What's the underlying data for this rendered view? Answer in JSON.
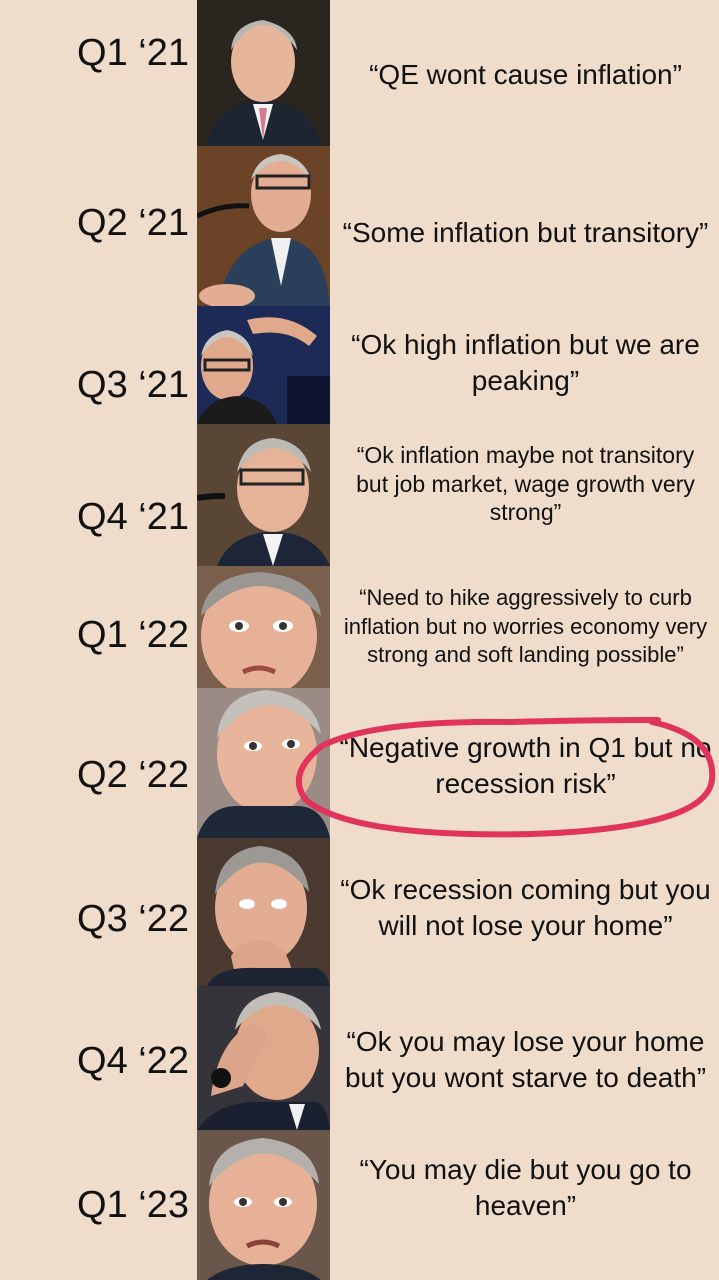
{
  "rows": [
    {
      "quarter": "Q1 ‘21",
      "quote": "“QE wont cause inflation”",
      "photo": "person-portrait-icon"
    },
    {
      "quarter": "Q2 ‘21",
      "quote": "“Some inflation but transitory”",
      "photo": "person-portrait-icon"
    },
    {
      "quarter": "Q3 ‘21",
      "quote": "“Ok high inflation but we are peaking”",
      "photo": "person-portrait-icon"
    },
    {
      "quarter": "Q4 ‘21",
      "quote": "“Ok inflation maybe not transitory but job market, wage growth very strong”",
      "photo": "person-portrait-icon"
    },
    {
      "quarter": "Q1 ‘22",
      "quote": "“Need to hike aggressively to curb inflation but no worries economy very strong and soft landing possible”",
      "photo": "person-portrait-icon"
    },
    {
      "quarter": "Q2 ‘22",
      "quote": "“Negative growth in Q1 but no recession risk”",
      "photo": "person-portrait-icon"
    },
    {
      "quarter": "Q3 ‘22",
      "quote": "“Ok recession coming but you will not lose your home”",
      "photo": "person-portrait-icon"
    },
    {
      "quarter": "Q4 ‘22",
      "quote": "“Ok you may lose your home but you wont starve to death”",
      "photo": "person-portrait-icon"
    },
    {
      "quarter": "Q1 ‘23",
      "quote": "“You may die but you go to heaven”",
      "photo": "person-portrait-icon"
    }
  ],
  "colors": {
    "background": "#f0dccb",
    "highlight_circle": "#e0345c"
  }
}
